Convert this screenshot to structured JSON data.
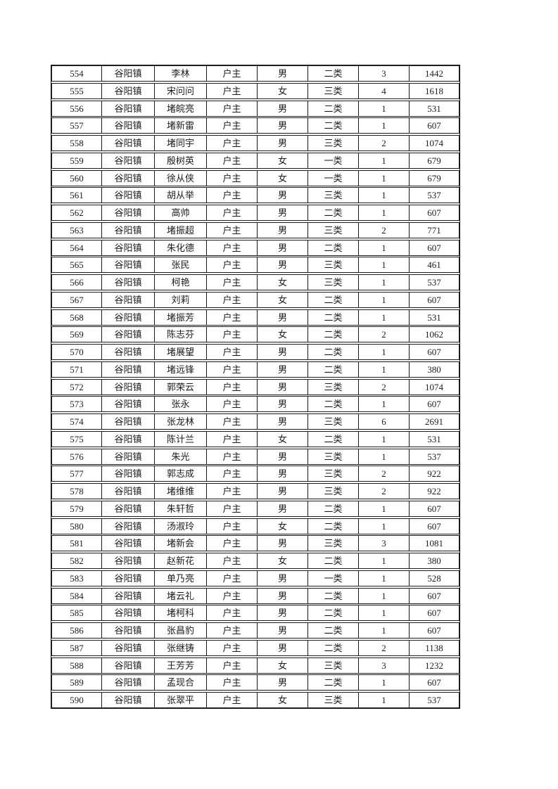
{
  "page": {
    "background": "#ffffff",
    "line_color": "#1c1c1c",
    "text_color": "#1c1c1c"
  },
  "table": {
    "fields": [
      "serial",
      "town",
      "name",
      "relation",
      "gender",
      "category",
      "count",
      "amount"
    ],
    "rows": [
      [
        "554",
        "谷阳镇",
        "李林",
        "户主",
        "男",
        "二类",
        "3",
        "1442"
      ],
      [
        "555",
        "谷阳镇",
        "宋问问",
        "户主",
        "女",
        "三类",
        "4",
        "1618"
      ],
      [
        "556",
        "谷阳镇",
        "堵皖亮",
        "户主",
        "男",
        "二类",
        "1",
        "531"
      ],
      [
        "557",
        "谷阳镇",
        "堵新雷",
        "户主",
        "男",
        "二类",
        "1",
        "607"
      ],
      [
        "558",
        "谷阳镇",
        "堵同宇",
        "户主",
        "男",
        "三类",
        "2",
        "1074"
      ],
      [
        "559",
        "谷阳镇",
        "殷树英",
        "户主",
        "女",
        "一类",
        "1",
        "679"
      ],
      [
        "560",
        "谷阳镇",
        "徐从侠",
        "户主",
        "女",
        "一类",
        "1",
        "679"
      ],
      [
        "561",
        "谷阳镇",
        "胡从举",
        "户主",
        "男",
        "三类",
        "1",
        "537"
      ],
      [
        "562",
        "谷阳镇",
        "高帅",
        "户主",
        "男",
        "二类",
        "1",
        "607"
      ],
      [
        "563",
        "谷阳镇",
        "堵振超",
        "户主",
        "男",
        "三类",
        "2",
        "771"
      ],
      [
        "564",
        "谷阳镇",
        "朱化德",
        "户主",
        "男",
        "二类",
        "1",
        "607"
      ],
      [
        "565",
        "谷阳镇",
        "张民",
        "户主",
        "男",
        "三类",
        "1",
        "461"
      ],
      [
        "566",
        "谷阳镇",
        "柯艳",
        "户主",
        "女",
        "三类",
        "1",
        "537"
      ],
      [
        "567",
        "谷阳镇",
        "刘莉",
        "户主",
        "女",
        "二类",
        "1",
        "607"
      ],
      [
        "568",
        "谷阳镇",
        "堵振芳",
        "户主",
        "男",
        "二类",
        "1",
        "531"
      ],
      [
        "569",
        "谷阳镇",
        "陈志芬",
        "户主",
        "女",
        "二类",
        "2",
        "1062"
      ],
      [
        "570",
        "谷阳镇",
        "堵展望",
        "户主",
        "男",
        "二类",
        "1",
        "607"
      ],
      [
        "571",
        "谷阳镇",
        "堵远锋",
        "户主",
        "男",
        "二类",
        "1",
        "380"
      ],
      [
        "572",
        "谷阳镇",
        "郭荣云",
        "户主",
        "男",
        "三类",
        "2",
        "1074"
      ],
      [
        "573",
        "谷阳镇",
        "张永",
        "户主",
        "男",
        "二类",
        "1",
        "607"
      ],
      [
        "574",
        "谷阳镇",
        "张龙林",
        "户主",
        "男",
        "三类",
        "6",
        "2691"
      ],
      [
        "575",
        "谷阳镇",
        "陈计兰",
        "户主",
        "女",
        "二类",
        "1",
        "531"
      ],
      [
        "576",
        "谷阳镇",
        "朱光",
        "户主",
        "男",
        "三类",
        "1",
        "537"
      ],
      [
        "577",
        "谷阳镇",
        "郭志成",
        "户主",
        "男",
        "三类",
        "2",
        "922"
      ],
      [
        "578",
        "谷阳镇",
        "堵维维",
        "户主",
        "男",
        "三类",
        "2",
        "922"
      ],
      [
        "579",
        "谷阳镇",
        "朱轩哲",
        "户主",
        "男",
        "二类",
        "1",
        "607"
      ],
      [
        "580",
        "谷阳镇",
        "汤淑玲",
        "户主",
        "女",
        "二类",
        "1",
        "607"
      ],
      [
        "581",
        "谷阳镇",
        "堵新会",
        "户主",
        "男",
        "三类",
        "3",
        "1081"
      ],
      [
        "582",
        "谷阳镇",
        "赵新花",
        "户主",
        "女",
        "二类",
        "1",
        "380"
      ],
      [
        "583",
        "谷阳镇",
        "单乃亮",
        "户主",
        "男",
        "一类",
        "1",
        "528"
      ],
      [
        "584",
        "谷阳镇",
        "堵云礼",
        "户主",
        "男",
        "二类",
        "1",
        "607"
      ],
      [
        "585",
        "谷阳镇",
        "堵柯科",
        "户主",
        "男",
        "二类",
        "1",
        "607"
      ],
      [
        "586",
        "谷阳镇",
        "张昌豹",
        "户主",
        "男",
        "二类",
        "1",
        "607"
      ],
      [
        "587",
        "谷阳镇",
        "张继铸",
        "户主",
        "男",
        "二类",
        "2",
        "1138"
      ],
      [
        "588",
        "谷阳镇",
        "王芳芳",
        "户主",
        "女",
        "三类",
        "3",
        "1232"
      ],
      [
        "589",
        "谷阳镇",
        "孟现合",
        "户主",
        "男",
        "二类",
        "1",
        "607"
      ],
      [
        "590",
        "谷阳镇",
        "张翠平",
        "户主",
        "女",
        "三类",
        "1",
        "537"
      ]
    ]
  }
}
